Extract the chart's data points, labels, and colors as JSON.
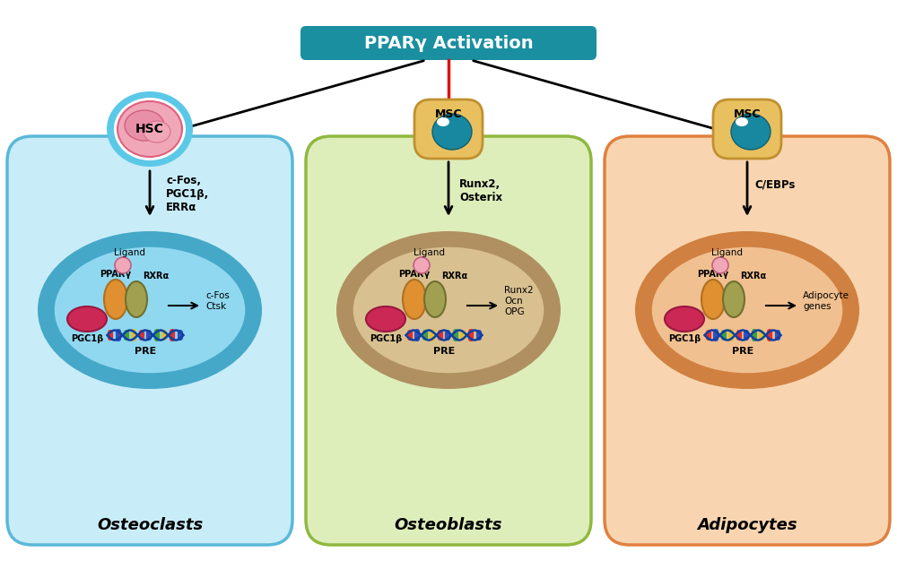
{
  "title": "PPARγ Activation",
  "title_bg": "#1a8fa0",
  "title_text_color": "#ffffff",
  "panel_labels": [
    "Osteoclasts",
    "Osteoblasts",
    "Adipocytes"
  ],
  "panel_bg_colors": [
    "#c8edf8",
    "#ddeebb",
    "#f8d5b0"
  ],
  "panel_border_colors": [
    "#5ab8d8",
    "#90b840",
    "#e08040"
  ],
  "white": "#ffffff",
  "black": "#000000",
  "red": "#dd1111",
  "teal_bg": "#1a8fa0",
  "hsc_outer": "#5cc8e8",
  "hsc_inner": "#f0a8b8",
  "msc_outer": "#e8c060",
  "msc_border": "#c09030",
  "msc_nucleus": "#2090a8",
  "ppar_fill": "#cc3060",
  "ppar_border": "#992040",
  "rxr_fill": "#d4a840",
  "rxr_border": "#a07820",
  "pgc_fill": "#cc3060",
  "pgc_border": "#992040",
  "ligand_fill": "#f0a8b8",
  "ligand_border": "#c06080",
  "nuc1_outer": "#45a8c8",
  "nuc1_inner": "#90d8f0",
  "nuc2_outer": "#b09060",
  "nuc2_inner": "#d8c090",
  "nuc3_outer": "#d08040",
  "nuc3_inner": "#f0c090"
}
